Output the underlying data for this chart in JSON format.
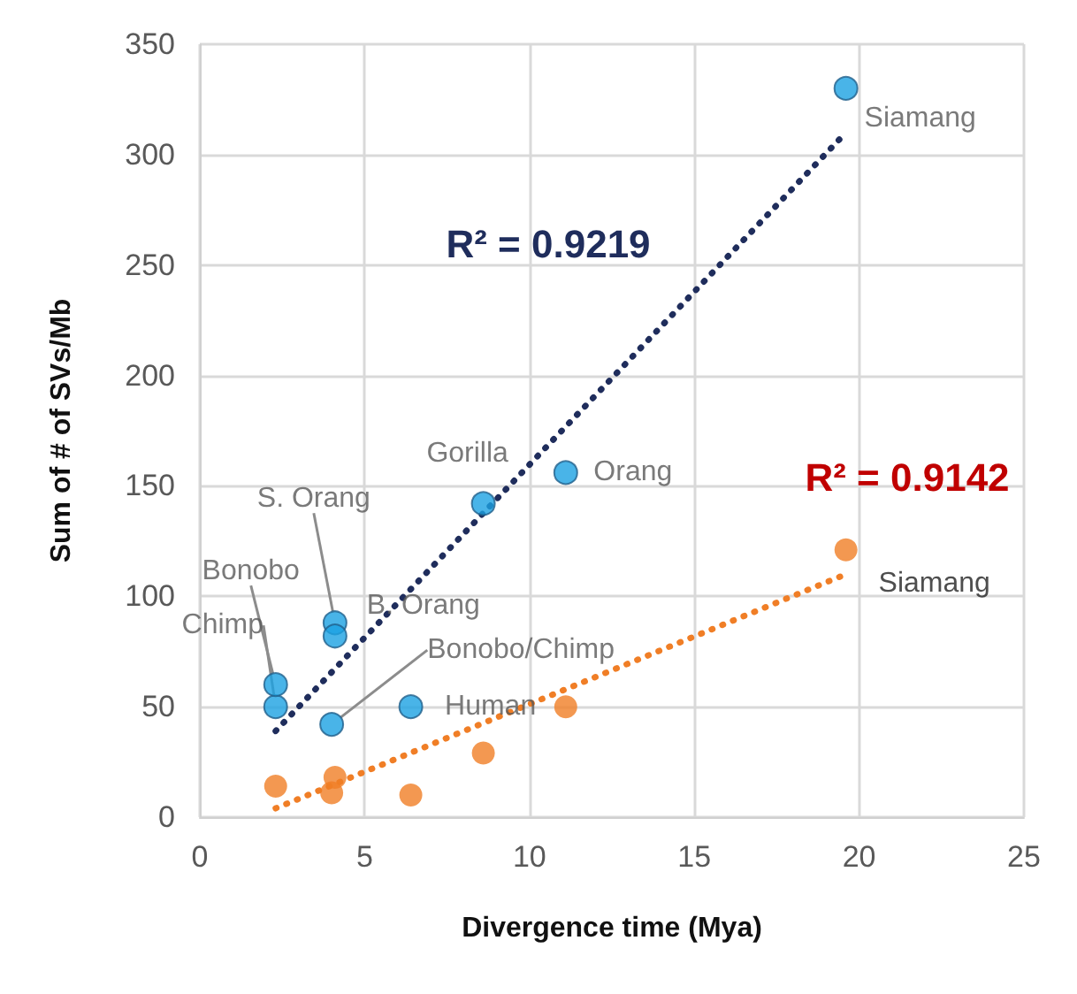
{
  "chart_data": {
    "type": "scatter",
    "xlabel": "Divergence time (Mya)",
    "ylabel": "Sum of # of SVs/Mb",
    "xlim": [
      0,
      25
    ],
    "xticks": [
      0,
      5,
      10,
      15,
      20,
      25
    ],
    "ylim": [
      0,
      350
    ],
    "yticks": [
      0,
      50,
      100,
      150,
      200,
      250,
      300,
      350
    ],
    "grid": true,
    "marker": "circle",
    "series": [
      {
        "color": "#1ba1e2",
        "x": [
          2.3,
          2.3,
          4.1,
          4.1,
          4.0,
          6.4,
          8.6,
          11.1,
          19.6
        ],
        "values": [
          50,
          60,
          88,
          82,
          42,
          50,
          142,
          156,
          330
        ],
        "value_labels": [
          "Chimp",
          "Bonobo",
          "S. Orang",
          "B. Orang",
          "Bonobo/Chimp",
          "Human",
          "Gorilla",
          "Orang",
          "Siamang"
        ]
      },
      {
        "color": "#f07e26",
        "x": [
          2.3,
          4.1,
          4.0,
          6.4,
          8.6,
          11.1,
          19.6
        ],
        "values": [
          14,
          18,
          11,
          10,
          29,
          50,
          121
        ],
        "value_labels": [
          null,
          null,
          null,
          null,
          null,
          null,
          "Siamang"
        ]
      },
      {
        "type": "line",
        "color": "#1f2d5c",
        "line_style": "dotted",
        "marker": "none",
        "x": [
          2.3,
          19.6
        ],
        "values": [
          39,
          310
        ]
      },
      {
        "type": "line",
        "color": "#f07e26",
        "line_style": "dotted",
        "marker": "none",
        "x": [
          2.3,
          19.6
        ],
        "values": [
          4,
          110
        ]
      }
    ],
    "annotations": [
      "R² = 0.9219",
      "R² = 0.9142"
    ]
  }
}
